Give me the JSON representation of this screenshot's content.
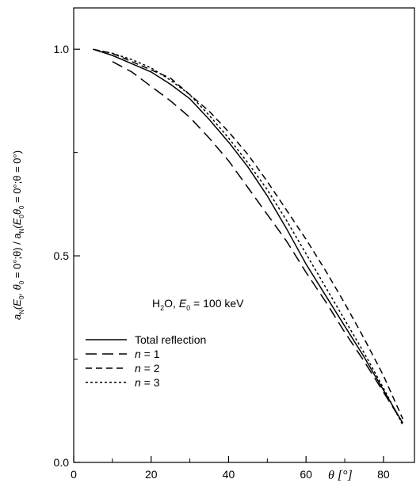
{
  "chart_data": {
    "type": "line",
    "xlabel": "θ [°]",
    "ylabel_parts": {
      "a": "a",
      "N": "N",
      "open": "(E",
      "sub0": "0",
      "mid": ", θ",
      "sub0b": "0",
      "eq1": " = 0°;θ) / a",
      "N2": "N",
      "open2": "(E",
      "sub0c": "0",
      "theta2": "θ",
      "sub0d": "0",
      "tail": " = 0°;θ = 0°)"
    },
    "annotation": {
      "h": "H",
      "two": "2",
      "o": "O, ",
      "e": "E",
      "zero": "0",
      "rest": " = 100 keV"
    },
    "xlim": [
      0,
      88
    ],
    "ylim": [
      0,
      1.1
    ],
    "x_ticks": [
      0,
      20,
      40,
      60,
      80
    ],
    "y_ticks": [
      0.0,
      0.5,
      1.0
    ],
    "x_tick_labels": [
      "0",
      "20",
      "40",
      "60",
      "80"
    ],
    "y_tick_labels": [
      "0.0",
      "0.5",
      "1.0"
    ],
    "legend_position": "lower-left",
    "series": [
      {
        "name": "Total reflection",
        "dash": "solid",
        "x": [
          5,
          10,
          15,
          20,
          25,
          30,
          35,
          40,
          45,
          50,
          55,
          60,
          65,
          70,
          75,
          80,
          85
        ],
        "y": [
          1.0,
          0.985,
          0.965,
          0.945,
          0.915,
          0.88,
          0.83,
          0.775,
          0.715,
          0.645,
          0.565,
          0.48,
          0.405,
          0.33,
          0.255,
          0.175,
          0.095
        ]
      },
      {
        "name": "n = 1",
        "dash": "long",
        "x": [
          10,
          15,
          20,
          25,
          30,
          35,
          40,
          45,
          50,
          55,
          60,
          65,
          70,
          75,
          80,
          85
        ],
        "y": [
          0.97,
          0.945,
          0.91,
          0.875,
          0.835,
          0.785,
          0.73,
          0.665,
          0.6,
          0.535,
          0.46,
          0.39,
          0.315,
          0.245,
          0.17,
          0.095
        ]
      },
      {
        "name": "n = 2",
        "dash": "medium",
        "x": [
          5,
          10,
          15,
          20,
          25,
          30,
          35,
          40,
          45,
          50,
          55,
          60,
          65,
          70,
          75,
          80,
          85
        ],
        "y": [
          1.0,
          0.99,
          0.97,
          0.95,
          0.93,
          0.89,
          0.85,
          0.8,
          0.745,
          0.68,
          0.61,
          0.54,
          0.465,
          0.385,
          0.3,
          0.21,
          0.105
        ]
      },
      {
        "name": "n = 3",
        "dash": "short",
        "x": [
          5,
          10,
          15,
          20,
          25,
          30,
          35,
          40,
          45,
          50,
          55,
          60,
          65,
          70,
          75,
          80,
          85
        ],
        "y": [
          1.0,
          0.99,
          0.975,
          0.955,
          0.925,
          0.89,
          0.84,
          0.785,
          0.725,
          0.66,
          0.585,
          0.505,
          0.425,
          0.345,
          0.265,
          0.18,
          0.09
        ]
      }
    ],
    "legend": [
      {
        "prefix": "",
        "italic": "",
        "text": "Total reflection",
        "series": 0
      },
      {
        "prefix": "",
        "italic": "n",
        "text": " = 1",
        "series": 1
      },
      {
        "prefix": "",
        "italic": "n",
        "text": " = 2",
        "series": 2
      },
      {
        "prefix": "",
        "italic": "n",
        "text": " = 3",
        "series": 3
      }
    ]
  }
}
